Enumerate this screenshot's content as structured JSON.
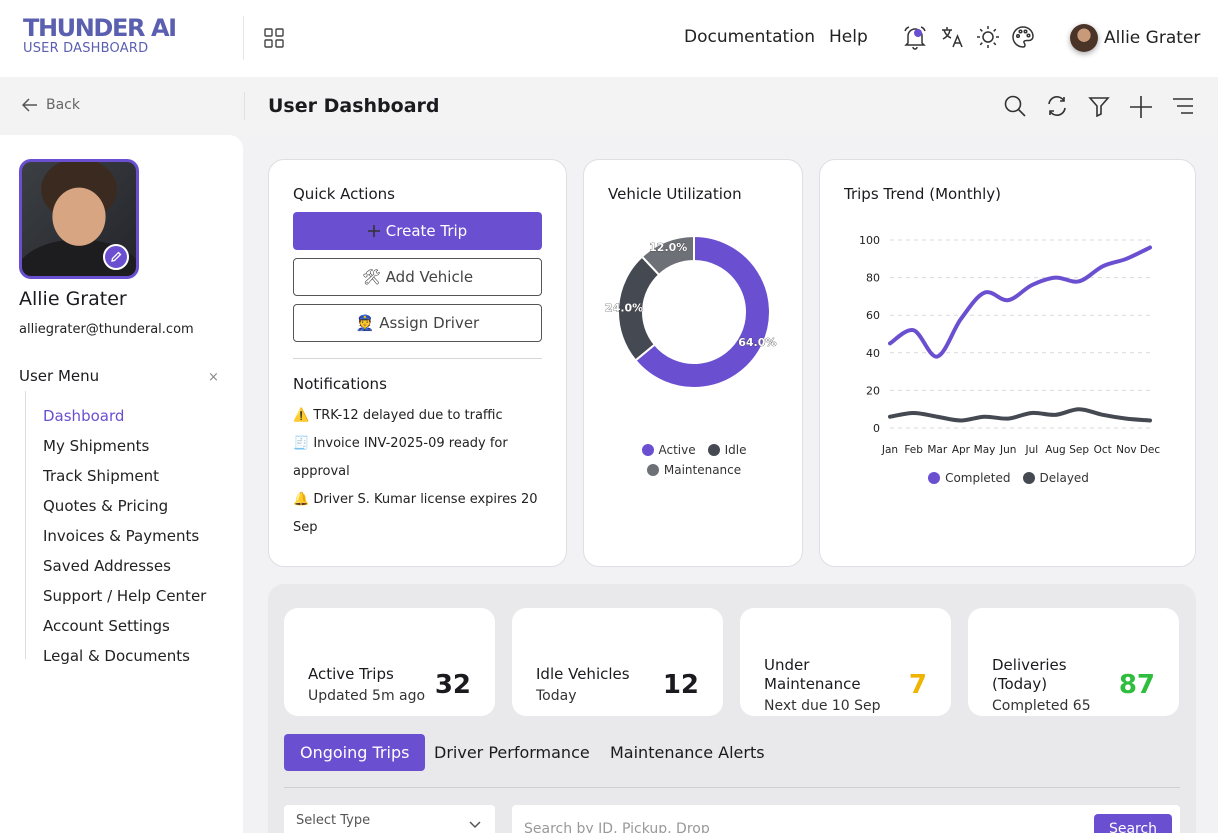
{
  "brand": {
    "title": "THUNDER AI",
    "subtitle": "USER DASHBOARD",
    "accent": "#6a4fd0"
  },
  "topnav": {
    "documentation": "Documentation",
    "help": "Help",
    "user_name": "Allie Grater",
    "icons": [
      "apps-icon",
      "bell-icon",
      "translate-icon",
      "sun-icon",
      "palette-icon"
    ]
  },
  "subheader": {
    "back": "Back",
    "page_title": "User Dashboard",
    "tools": [
      "search-icon",
      "refresh-icon",
      "filter-icon",
      "plus-icon",
      "menu-icon"
    ]
  },
  "profile": {
    "name": "Allie Grater",
    "email": "alliegrater@thunderal.com"
  },
  "menu": {
    "title": "User Menu",
    "close": "×",
    "items": [
      "Dashboard",
      "My Shipments",
      "Track Shipment",
      "Quotes & Pricing",
      "Invoices & Payments",
      "Saved Addresses",
      "Support / Help Center",
      "Account Settings",
      "Legal & Documents"
    ]
  },
  "quick_actions": {
    "title": "Quick Actions",
    "create_trip": "Create Trip",
    "add_vehicle": "🛠 Add Vehicle",
    "assign_driver": "👮 Assign Driver",
    "notifications_title": "Notifications",
    "notifications": [
      "⚠️ TRK-12 delayed due to traffic",
      "🧾 Invoice INV-2025-09 ready for approval",
      "🔔 Driver S. Kumar license expires 20 Sep"
    ]
  },
  "colors": {
    "active": "#6a4fd0",
    "idle": "#454a52",
    "maintenance": "#6d7177",
    "completed": "#6a4fd0",
    "delayed": "#454a52",
    "amber": "#f0b400",
    "green": "#2ebd3c"
  },
  "chart_data": [
    {
      "type": "pie",
      "title": "Vehicle Utilization",
      "categories": [
        "Active",
        "Idle",
        "Maintenance"
      ],
      "values": [
        64.0,
        24.0,
        12.0
      ],
      "labels": [
        "64.0%",
        "24.0%",
        "12.0%"
      ],
      "legend": "bottom"
    },
    {
      "type": "line",
      "title": "Trips Trend (Monthly)",
      "categories": [
        "Jan",
        "Feb",
        "Mar",
        "Apr",
        "May",
        "Jun",
        "Jul",
        "Aug",
        "Sep",
        "Oct",
        "Nov",
        "Dec"
      ],
      "series": [
        {
          "name": "Completed",
          "values": [
            45,
            52,
            38,
            58,
            72,
            68,
            76,
            80,
            78,
            86,
            90,
            96
          ]
        },
        {
          "name": "Delayed",
          "values": [
            6,
            8,
            6,
            4,
            6,
            5,
            8,
            7,
            10,
            7,
            5,
            4
          ]
        }
      ],
      "ylim": [
        0,
        100
      ],
      "yticks": [
        "0",
        "20",
        "40",
        "60",
        "80",
        "100"
      ],
      "grid": true,
      "legend": "bottom"
    }
  ],
  "kpis": [
    {
      "label": "Active Trips",
      "sub": "Updated 5m ago",
      "value": "32"
    },
    {
      "label": "Idle Vehicles",
      "sub": "Today",
      "value": "12"
    },
    {
      "label": "Under Maintenance",
      "sub": "Next due 10 Sep",
      "value": "7"
    },
    {
      "label": "Deliveries (Today)",
      "sub": "Completed 65",
      "value": "87"
    }
  ],
  "tabs": [
    "Ongoing Trips",
    "Driver Performance",
    "Maintenance Alerts"
  ],
  "filters": {
    "select_type": "Select Type",
    "search_placeholder": "Search by ID, Pickup, Drop",
    "search_button": "Search"
  }
}
